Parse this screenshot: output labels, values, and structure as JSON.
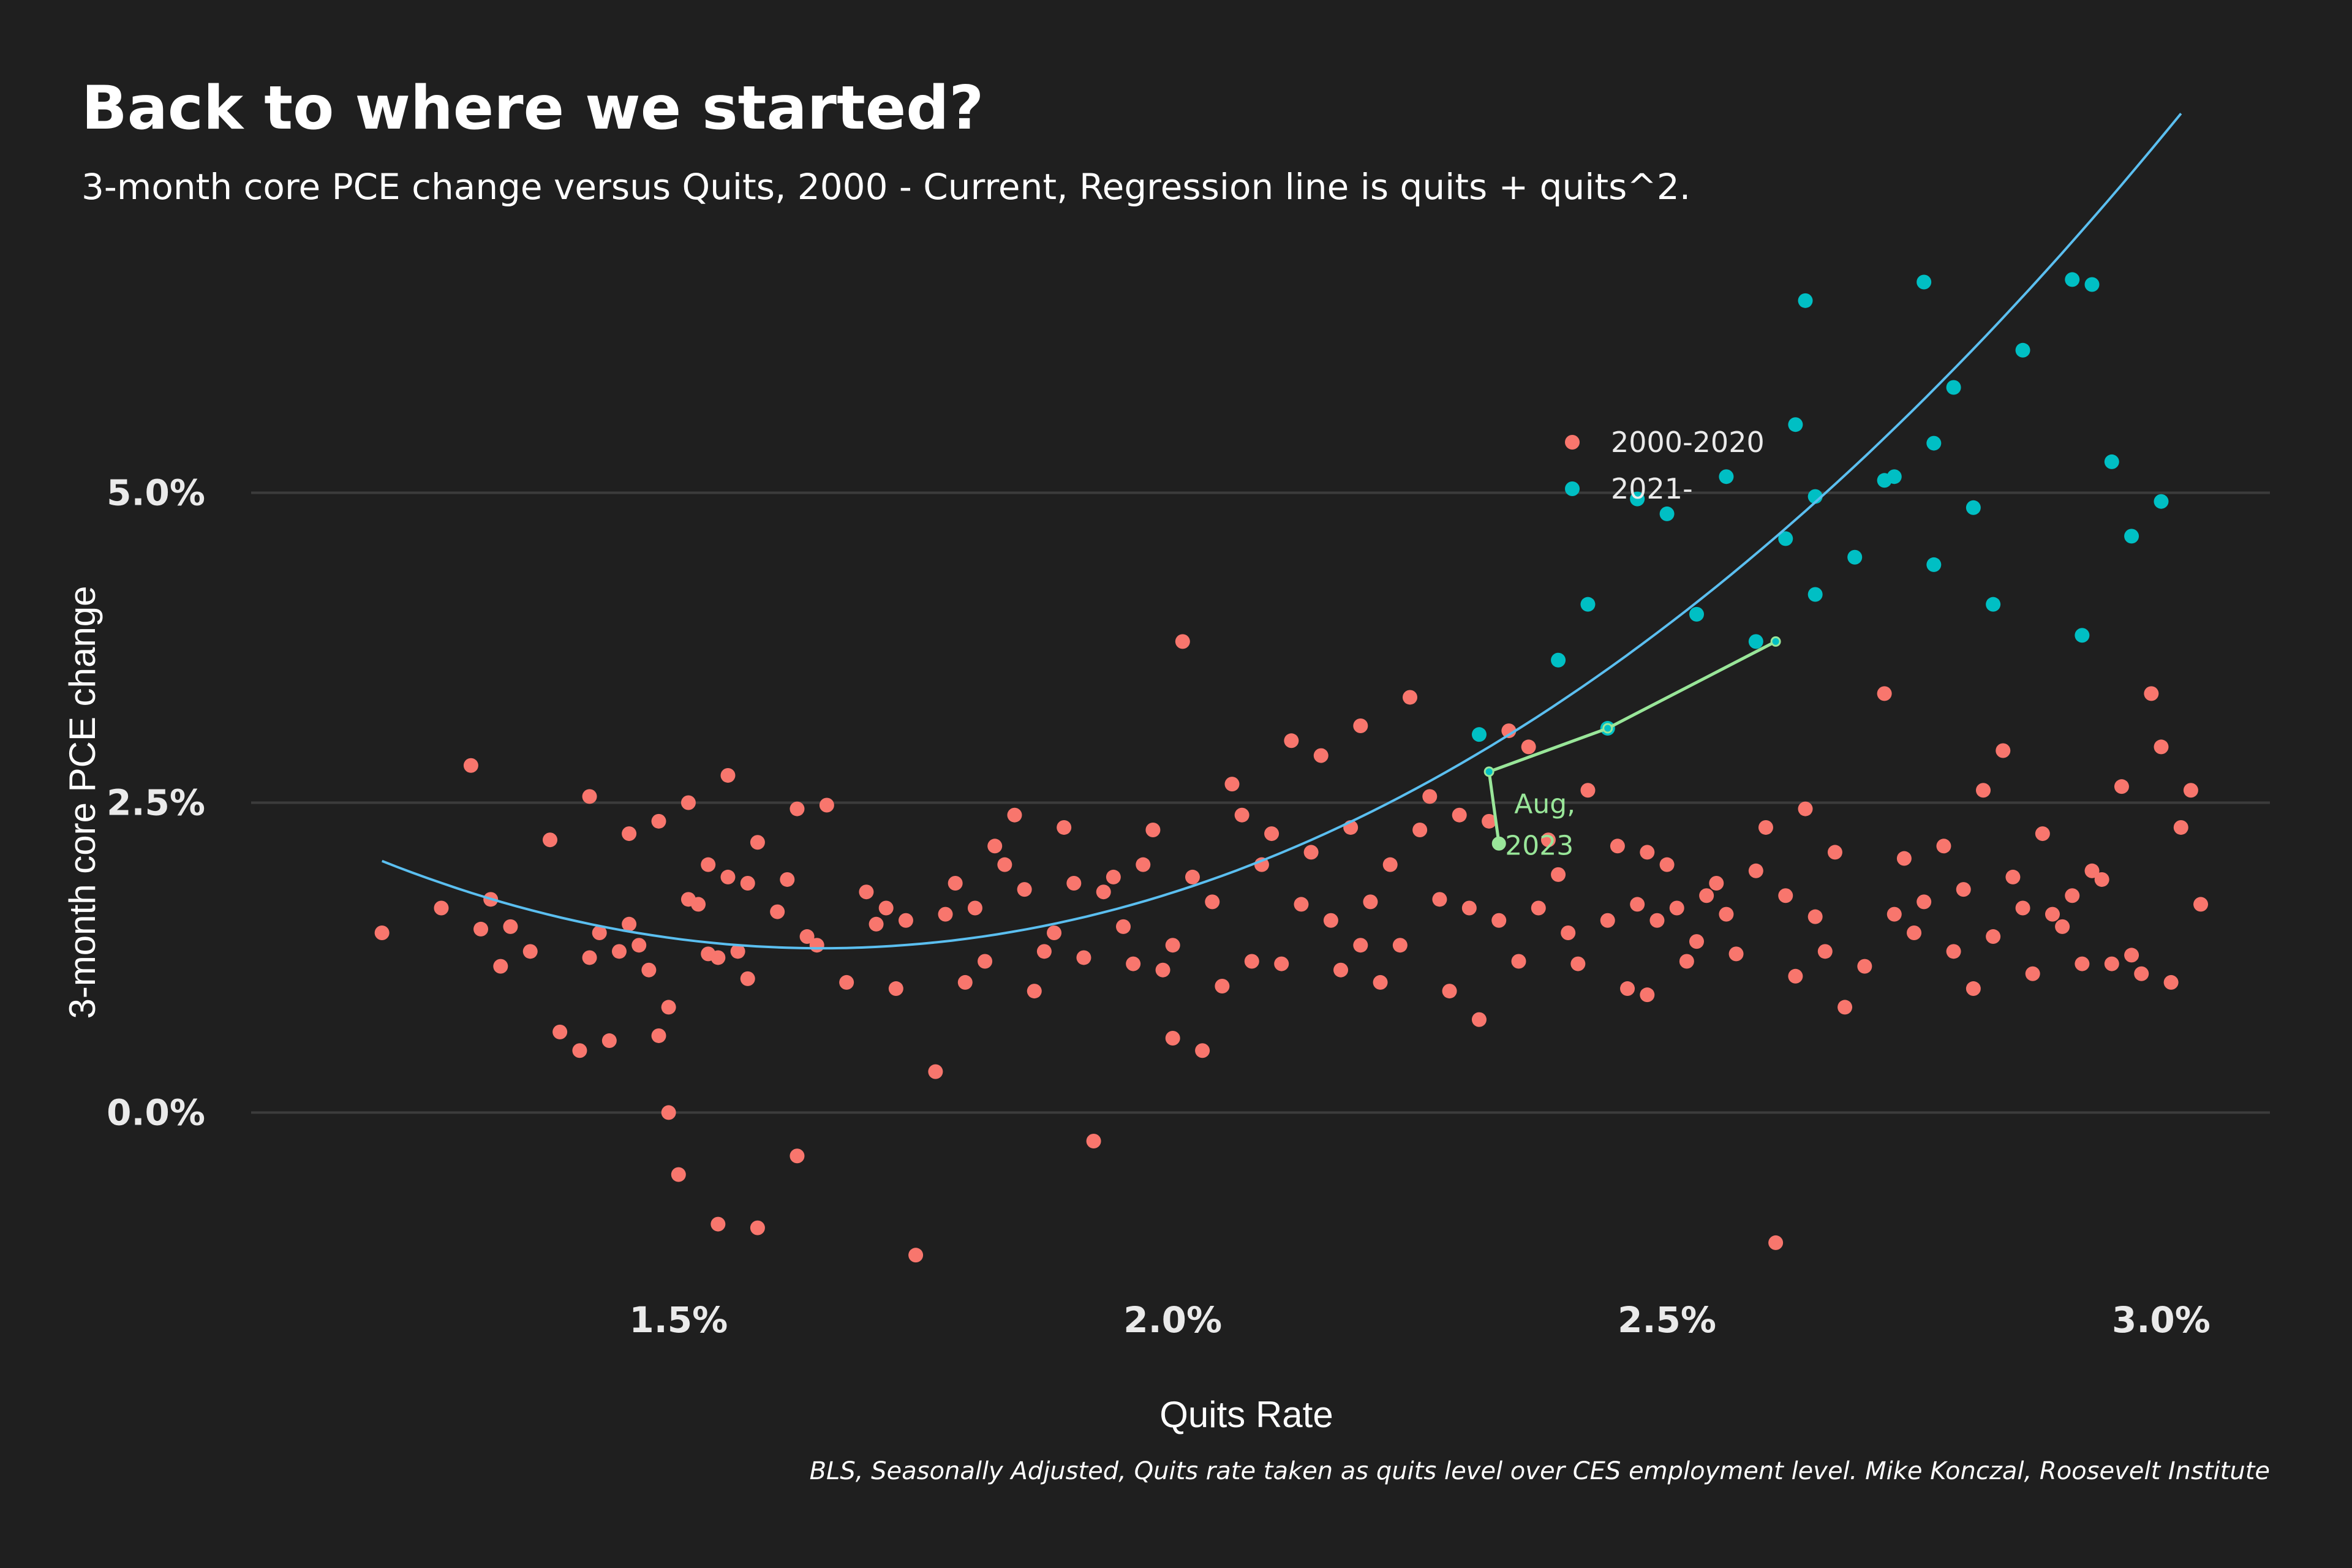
{
  "chart_data": {
    "type": "scatter",
    "title": "Back to where we started?",
    "subtitle": "3-month core PCE change versus Quits, 2000 - Current, Regression line is quits + quits^2.",
    "xlabel": "Quits Rate",
    "ylabel": "3-month core PCE change",
    "caption": "BLS, Seasonally Adjusted, Quits rate taken as quits level over CES employment level. Mike Konczal, Roosevelt Institute",
    "xlim": [
      1.08,
      3.11
    ],
    "ylim": [
      -1.5,
      6.9
    ],
    "x_ticks": [
      1.5,
      2.0,
      2.5,
      3.0
    ],
    "x_tick_labels": [
      "1.5%",
      "2.0%",
      "2.5%",
      "3.0%"
    ],
    "y_ticks": [
      0,
      2.5,
      5
    ],
    "y_tick_labels": [
      "0.0%",
      "2.5%",
      "5.0%"
    ],
    "grid": "horizontal",
    "legend": {
      "placement": "top-right",
      "entries": [
        {
          "label": "2000-2020",
          "color": "#f8766d"
        },
        {
          "label": "2021-",
          "color": "#00bfc4"
        }
      ]
    },
    "series": [
      {
        "name": "2000-2020",
        "color": "#f8766d",
        "points": [
          [
            1.2,
            1.45
          ],
          [
            1.26,
            1.65
          ],
          [
            1.29,
            2.8
          ],
          [
            1.3,
            1.48
          ],
          [
            1.31,
            1.72
          ],
          [
            1.32,
            1.18
          ],
          [
            1.33,
            1.5
          ],
          [
            1.35,
            1.3
          ],
          [
            1.37,
            2.2
          ],
          [
            1.38,
            0.65
          ],
          [
            1.4,
            0.5
          ],
          [
            1.41,
            1.25
          ],
          [
            1.41,
            2.55
          ],
          [
            1.42,
            1.45
          ],
          [
            1.43,
            0.58
          ],
          [
            1.44,
            1.3
          ],
          [
            1.45,
            1.52
          ],
          [
            1.45,
            2.25
          ],
          [
            1.46,
            1.35
          ],
          [
            1.47,
            1.15
          ],
          [
            1.48,
            0.62
          ],
          [
            1.48,
            2.35
          ],
          [
            1.49,
            0.85
          ],
          [
            1.49,
            0.0
          ],
          [
            1.5,
            -0.5
          ],
          [
            1.51,
            1.72
          ],
          [
            1.51,
            2.5
          ],
          [
            1.52,
            1.68
          ],
          [
            1.53,
            2.0
          ],
          [
            1.53,
            1.28
          ],
          [
            1.54,
            1.25
          ],
          [
            1.54,
            -0.9
          ],
          [
            1.55,
            2.72
          ],
          [
            1.55,
            1.9
          ],
          [
            1.56,
            1.3
          ],
          [
            1.57,
            1.85
          ],
          [
            1.57,
            1.08
          ],
          [
            1.58,
            2.18
          ],
          [
            1.58,
            -0.93
          ],
          [
            1.6,
            1.62
          ],
          [
            1.61,
            1.88
          ],
          [
            1.62,
            2.45
          ],
          [
            1.62,
            -0.35
          ],
          [
            1.63,
            1.42
          ],
          [
            1.64,
            1.35
          ],
          [
            1.65,
            2.48
          ],
          [
            1.67,
            1.05
          ],
          [
            1.69,
            1.78
          ],
          [
            1.7,
            1.52
          ],
          [
            1.71,
            1.65
          ],
          [
            1.72,
            1.0
          ],
          [
            1.73,
            1.55
          ],
          [
            1.74,
            -1.15
          ],
          [
            1.76,
            0.33
          ],
          [
            1.77,
            1.6
          ],
          [
            1.78,
            1.85
          ],
          [
            1.79,
            1.05
          ],
          [
            1.8,
            1.65
          ],
          [
            1.81,
            1.22
          ],
          [
            1.82,
            2.15
          ],
          [
            1.83,
            2.0
          ],
          [
            1.84,
            2.4
          ],
          [
            1.85,
            1.8
          ],
          [
            1.86,
            0.98
          ],
          [
            1.87,
            1.3
          ],
          [
            1.88,
            1.45
          ],
          [
            1.89,
            2.3
          ],
          [
            1.9,
            1.85
          ],
          [
            1.91,
            1.25
          ],
          [
            1.92,
            -0.23
          ],
          [
            1.93,
            1.78
          ],
          [
            1.94,
            1.9
          ],
          [
            1.95,
            1.5
          ],
          [
            1.96,
            1.2
          ],
          [
            1.97,
            2.0
          ],
          [
            1.98,
            2.28
          ],
          [
            1.99,
            1.15
          ],
          [
            2.0,
            0.6
          ],
          [
            2.0,
            1.35
          ],
          [
            2.01,
            3.8
          ],
          [
            2.02,
            1.9
          ],
          [
            2.03,
            0.5
          ],
          [
            2.04,
            1.7
          ],
          [
            2.05,
            1.02
          ],
          [
            2.06,
            2.65
          ],
          [
            2.07,
            2.4
          ],
          [
            2.08,
            1.22
          ],
          [
            2.09,
            2.0
          ],
          [
            2.1,
            2.25
          ],
          [
            2.11,
            1.2
          ],
          [
            2.12,
            3.0
          ],
          [
            2.13,
            1.68
          ],
          [
            2.14,
            2.1
          ],
          [
            2.15,
            2.88
          ],
          [
            2.16,
            1.55
          ],
          [
            2.17,
            1.15
          ],
          [
            2.18,
            2.3
          ],
          [
            2.19,
            3.12
          ],
          [
            2.19,
            1.35
          ],
          [
            2.2,
            1.7
          ],
          [
            2.21,
            1.05
          ],
          [
            2.22,
            2.0
          ],
          [
            2.23,
            1.35
          ],
          [
            2.24,
            3.35
          ],
          [
            2.25,
            2.28
          ],
          [
            2.26,
            2.55
          ],
          [
            2.27,
            1.72
          ],
          [
            2.28,
            0.98
          ],
          [
            2.29,
            2.4
          ],
          [
            2.3,
            1.65
          ],
          [
            2.31,
            0.75
          ],
          [
            2.32,
            2.35
          ],
          [
            2.33,
            1.55
          ],
          [
            2.34,
            3.08
          ],
          [
            2.35,
            1.22
          ],
          [
            2.36,
            2.95
          ],
          [
            2.37,
            1.65
          ],
          [
            2.38,
            2.2
          ],
          [
            2.39,
            1.92
          ],
          [
            2.4,
            1.45
          ],
          [
            2.41,
            1.2
          ],
          [
            2.42,
            2.6
          ],
          [
            2.44,
            1.55
          ],
          [
            2.45,
            2.15
          ],
          [
            2.46,
            1.0
          ],
          [
            2.47,
            1.68
          ],
          [
            2.48,
            0.95
          ],
          [
            2.48,
            2.1
          ],
          [
            2.49,
            1.55
          ],
          [
            2.5,
            2.0
          ],
          [
            2.51,
            1.65
          ],
          [
            2.52,
            1.22
          ],
          [
            2.53,
            1.38
          ],
          [
            2.54,
            1.75
          ],
          [
            2.55,
            1.85
          ],
          [
            2.56,
            1.6
          ],
          [
            2.57,
            1.28
          ],
          [
            2.59,
            1.95
          ],
          [
            2.6,
            2.3
          ],
          [
            2.61,
            -1.05
          ],
          [
            2.62,
            1.75
          ],
          [
            2.63,
            1.1
          ],
          [
            2.64,
            2.45
          ],
          [
            2.65,
            1.58
          ],
          [
            2.66,
            1.3
          ],
          [
            2.67,
            2.1
          ],
          [
            2.68,
            0.85
          ],
          [
            2.7,
            1.18
          ],
          [
            2.72,
            3.38
          ],
          [
            2.73,
            1.6
          ],
          [
            2.74,
            2.05
          ],
          [
            2.75,
            1.45
          ],
          [
            2.76,
            1.7
          ],
          [
            2.78,
            2.15
          ],
          [
            2.79,
            1.3
          ],
          [
            2.8,
            1.8
          ],
          [
            2.81,
            1.0
          ],
          [
            2.82,
            2.6
          ],
          [
            2.83,
            1.42
          ],
          [
            2.84,
            2.92
          ],
          [
            2.85,
            1.9
          ],
          [
            2.86,
            1.65
          ],
          [
            2.87,
            1.12
          ],
          [
            2.88,
            2.25
          ],
          [
            2.89,
            1.6
          ],
          [
            2.9,
            1.5
          ],
          [
            2.91,
            1.75
          ],
          [
            2.92,
            1.2
          ],
          [
            2.93,
            1.95
          ],
          [
            2.94,
            1.88
          ],
          [
            2.95,
            1.2
          ],
          [
            2.96,
            2.63
          ],
          [
            2.97,
            1.27
          ],
          [
            2.98,
            1.12
          ],
          [
            2.99,
            3.38
          ],
          [
            3.0,
            2.95
          ],
          [
            3.01,
            1.05
          ],
          [
            3.02,
            2.3
          ],
          [
            3.03,
            2.6
          ],
          [
            3.04,
            1.68
          ]
        ]
      },
      {
        "name": "2021-",
        "color": "#00bfc4",
        "points": [
          [
            2.31,
            3.05
          ],
          [
            2.39,
            3.65
          ],
          [
            2.42,
            4.1
          ],
          [
            2.44,
            3.1
          ],
          [
            2.47,
            4.95
          ],
          [
            2.5,
            4.83
          ],
          [
            2.53,
            4.02
          ],
          [
            2.56,
            5.13
          ],
          [
            2.59,
            3.8
          ],
          [
            2.62,
            4.63
          ],
          [
            2.63,
            5.55
          ],
          [
            2.64,
            6.55
          ],
          [
            2.65,
            4.18
          ],
          [
            2.65,
            4.97
          ],
          [
            2.69,
            4.48
          ],
          [
            2.72,
            5.1
          ],
          [
            2.73,
            5.13
          ],
          [
            2.76,
            6.7
          ],
          [
            2.77,
            5.4
          ],
          [
            2.77,
            4.42
          ],
          [
            2.79,
            5.85
          ],
          [
            2.81,
            4.88
          ],
          [
            2.83,
            4.1
          ],
          [
            2.86,
            6.15
          ],
          [
            2.91,
            6.72
          ],
          [
            2.92,
            3.85
          ],
          [
            2.93,
            6.68
          ],
          [
            2.95,
            5.25
          ],
          [
            2.97,
            4.65
          ],
          [
            3.0,
            4.93
          ]
        ]
      }
    ],
    "regression": {
      "type": "quadratic",
      "coefficients": [
        10.955,
        -11.71,
        3.56
      ],
      "x_range": [
        1.2,
        3.02
      ]
    },
    "annotation": {
      "label": "Aug, 2023",
      "path": [
        [
          2.61,
          3.8
        ],
        [
          2.44,
          3.1
        ],
        [
          2.32,
          2.75
        ],
        [
          2.33,
          2.17
        ]
      ]
    }
  }
}
